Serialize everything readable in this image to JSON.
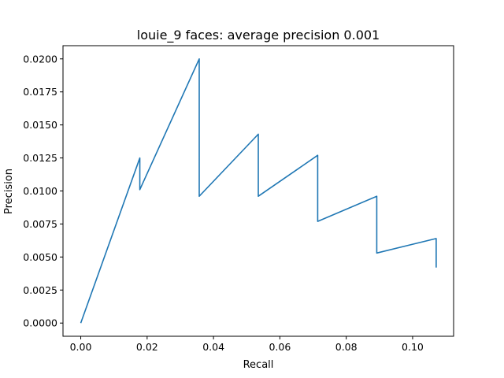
{
  "chart_data": {
    "type": "line",
    "title": "louie_9 faces: average precision 0.001",
    "xlabel": "Recall",
    "ylabel": "Precision",
    "xlim": [
      -0.00535,
      0.11235
    ],
    "ylim": [
      -0.001,
      0.021
    ],
    "x_ticks": [
      "0.00",
      "0.02",
      "0.04",
      "0.06",
      "0.08",
      "0.10"
    ],
    "x_tick_values": [
      0.0,
      0.02,
      0.04,
      0.06,
      0.08,
      0.1
    ],
    "y_ticks": [
      "0.0000",
      "0.0025",
      "0.0050",
      "0.0075",
      "0.0100",
      "0.0125",
      "0.0150",
      "0.0175",
      "0.0200"
    ],
    "y_tick_values": [
      0.0,
      0.0025,
      0.005,
      0.0075,
      0.01,
      0.0125,
      0.015,
      0.0175,
      0.02
    ],
    "grid": false,
    "series": [
      {
        "color": "#1f77b4",
        "x": [
          0.0,
          0.0178,
          0.0178,
          0.0357,
          0.0357,
          0.0535,
          0.0535,
          0.0714,
          0.0714,
          0.0892,
          0.0892,
          0.1071,
          0.1071
        ],
        "y": [
          0.0,
          0.0125,
          0.0101,
          0.02,
          0.0096,
          0.0143,
          0.0096,
          0.0127,
          0.0077,
          0.0096,
          0.0053,
          0.0064,
          0.0042
        ]
      }
    ]
  }
}
